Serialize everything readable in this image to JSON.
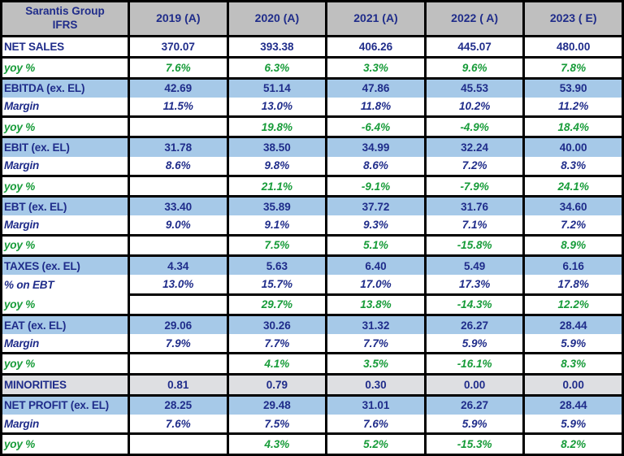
{
  "header": {
    "title_line1": "Sarantis Group",
    "title_line2": "IFRS"
  },
  "chart_data": {
    "type": "table",
    "title": "Sarantis Group IFRS",
    "columns": [
      "2019 (A)",
      "2020 (A)",
      "2021 (A)",
      "2022 ( A)",
      "2023 ( E)"
    ],
    "rows": [
      {
        "label": "NET SALES",
        "kind": "metric",
        "bg": "white",
        "divider": "full",
        "values": [
          "370.07",
          "393.38",
          "406.26",
          "445.07",
          "480.00"
        ]
      },
      {
        "label": "yoy %",
        "kind": "yoy",
        "bg": "white",
        "divider": "full",
        "values": [
          "7.6%",
          "6.3%",
          "3.3%",
          "9.6%",
          "7.8%"
        ]
      },
      {
        "label": "EBITDA (ex. EL)",
        "kind": "metric",
        "bg": "blue",
        "divider": "full",
        "values": [
          "42.69",
          "51.14",
          "47.86",
          "45.53",
          "53.90"
        ]
      },
      {
        "label": "Margin",
        "kind": "margin",
        "bg": "white",
        "divider": "none",
        "values": [
          "11.5%",
          "13.0%",
          "11.8%",
          "10.2%",
          "11.2%"
        ]
      },
      {
        "label": "yoy %",
        "kind": "yoy",
        "bg": "white",
        "divider": "full",
        "values": [
          "",
          "19.8%",
          "-6.4%",
          "-4.9%",
          "18.4%"
        ]
      },
      {
        "label": "EBIT (ex. EL)",
        "kind": "metric",
        "bg": "blue",
        "divider": "full",
        "values": [
          "31.78",
          "38.50",
          "34.99",
          "32.24",
          "40.00"
        ]
      },
      {
        "label": "Margin",
        "kind": "margin",
        "bg": "white",
        "divider": "none",
        "values": [
          "8.6%",
          "9.8%",
          "8.6%",
          "7.2%",
          "8.3%"
        ]
      },
      {
        "label": "yoy %",
        "kind": "yoy",
        "bg": "white",
        "divider": "full",
        "values": [
          "",
          "21.1%",
          "-9.1%",
          "-7.9%",
          "24.1%"
        ]
      },
      {
        "label": "EBT (ex. EL)",
        "kind": "metric",
        "bg": "blue",
        "divider": "full",
        "values": [
          "33.40",
          "35.89",
          "37.72",
          "31.76",
          "34.60"
        ]
      },
      {
        "label": "Margin",
        "kind": "margin",
        "bg": "white",
        "divider": "none",
        "values": [
          "9.0%",
          "9.1%",
          "9.3%",
          "7.1%",
          "7.2%"
        ]
      },
      {
        "label": "yoy %",
        "kind": "yoy",
        "bg": "white",
        "divider": "full",
        "values": [
          "",
          "7.5%",
          "5.1%",
          "-15.8%",
          "8.9%"
        ]
      },
      {
        "label": "TAXES (ex. EL)",
        "kind": "metric",
        "bg": "blue",
        "divider": "full",
        "values": [
          "4.34",
          "5.63",
          "6.40",
          "5.49",
          "6.16"
        ]
      },
      {
        "label": "% on EBT",
        "kind": "margin",
        "bg": "white",
        "divider": "none",
        "values": [
          "13.0%",
          "15.7%",
          "17.0%",
          "17.3%",
          "17.8%"
        ]
      },
      {
        "label": "yoy %",
        "kind": "yoy",
        "bg": "white",
        "divider": "data",
        "values": [
          "",
          "29.7%",
          "13.8%",
          "-14.3%",
          "12.2%"
        ]
      },
      {
        "label": "EAT (ex. EL)",
        "kind": "metric",
        "bg": "blue",
        "divider": "full",
        "values": [
          "29.06",
          "30.26",
          "31.32",
          "26.27",
          "28.44"
        ]
      },
      {
        "label": "Margin",
        "kind": "margin",
        "bg": "white",
        "divider": "none",
        "values": [
          "7.9%",
          "7.7%",
          "7.7%",
          "5.9%",
          "5.9%"
        ]
      },
      {
        "label": "yoy %",
        "kind": "yoy",
        "bg": "white",
        "divider": "full",
        "values": [
          "",
          "4.1%",
          "3.5%",
          "-16.1%",
          "8.3%"
        ]
      },
      {
        "label": "MINORITIES",
        "kind": "metric",
        "bg": "gray",
        "divider": "full",
        "values": [
          "0.81",
          "0.79",
          "0.30",
          "0.00",
          "0.00"
        ]
      },
      {
        "label": "NET PROFIT (ex. EL)",
        "kind": "metric",
        "bg": "blue",
        "divider": "full",
        "values": [
          "28.25",
          "29.48",
          "31.01",
          "26.27",
          "28.44"
        ]
      },
      {
        "label": "Margin",
        "kind": "margin",
        "bg": "white",
        "divider": "none",
        "values": [
          "7.6%",
          "7.5%",
          "7.6%",
          "5.9%",
          "5.9%"
        ]
      },
      {
        "label": "yoy %",
        "kind": "yoy",
        "bg": "white",
        "divider": "full",
        "values": [
          "",
          "4.3%",
          "5.2%",
          "-15.3%",
          "8.2%"
        ]
      }
    ]
  },
  "colors": {
    "navy": "#1F2C8A",
    "green": "#169B38",
    "row-blue": "#A6C9E8",
    "row-gray": "#DEDFE2",
    "header-gray": "#BFBFBF",
    "grid": "#000000"
  }
}
